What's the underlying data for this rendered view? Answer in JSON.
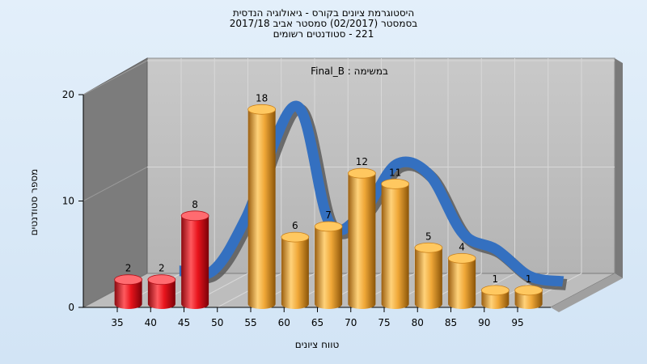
{
  "chart_data": {
    "type": "bar",
    "title_lines": [
      "היסטוגרמת ציונים בקורס - גיאולוגיה הנדסית",
      "בסמסטר  (02/2017)  סמסטר אביב 2017/18",
      "221 - סטודנטים רשומים"
    ],
    "task_label": "במשימה : Final_B",
    "xlabel": "טווח ציונים",
    "ylabel": "מספר סטודנטים",
    "x_ticks": [
      "35",
      "40",
      "45",
      "50",
      "55",
      "60",
      "65",
      "70",
      "75",
      "80",
      "85",
      "90",
      "95"
    ],
    "y_ticks": [
      "0",
      "10",
      "20"
    ],
    "ylim": [
      0,
      20
    ],
    "bars": [
      {
        "x": 37.5,
        "value": 2,
        "color": "#e8141c"
      },
      {
        "x": 42.5,
        "value": 2,
        "color": "#e8141c"
      },
      {
        "x": 47.5,
        "value": 8,
        "color": "#e8141c"
      },
      {
        "x": 57.5,
        "value": 18,
        "color": "#f0a838"
      },
      {
        "x": 62.5,
        "value": 6,
        "color": "#f0a838"
      },
      {
        "x": 67.5,
        "value": 7,
        "color": "#f0a838"
      },
      {
        "x": 72.5,
        "value": 12,
        "color": "#f0a838"
      },
      {
        "x": 77.5,
        "value": 11,
        "color": "#f0a838"
      },
      {
        "x": 82.5,
        "value": 5,
        "color": "#f0a838"
      },
      {
        "x": 87.5,
        "value": 4,
        "color": "#f0a838"
      },
      {
        "x": 92.5,
        "value": 1,
        "color": "#f0a838"
      },
      {
        "x": 97.5,
        "value": 1,
        "color": "#f0a838"
      }
    ],
    "curve": {
      "color": "#3470c0",
      "points": [
        [
          40,
          2
        ],
        [
          45,
          2
        ],
        [
          50,
          7
        ],
        [
          57.5,
          17.5
        ],
        [
          62.5,
          6.5
        ],
        [
          67.5,
          7.5
        ],
        [
          72.5,
          12
        ],
        [
          77.5,
          11
        ],
        [
          82.5,
          5.5
        ],
        [
          87.5,
          4
        ],
        [
          92.5,
          1.5
        ],
        [
          97.5,
          1
        ]
      ]
    },
    "grid": true,
    "legend": "none",
    "style": "3d-cylinder"
  }
}
